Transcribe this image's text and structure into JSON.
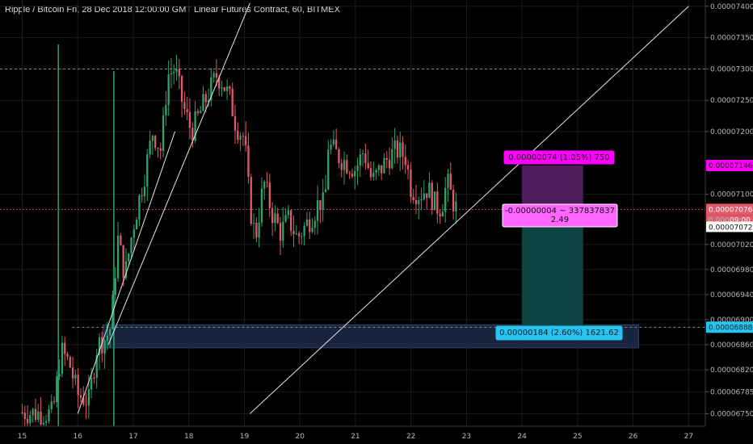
{
  "header": {
    "title": "Ripple / Bitcoin Fri, 28 Dec 2018 12:00:00 GMT Linear Futures Contract, 60, BITMEX"
  },
  "colors": {
    "up": "#2fa36b",
    "down": "#e05a6a",
    "background": "#000000",
    "grid": "#1c1c1c",
    "trendline": "#e6e6e6",
    "profit_zone": "#5a1f66",
    "loss_zone": "#0e4a4a",
    "support_zone": "#1d2b4a",
    "magenta_label": "#ff00ff",
    "cyan_label": "#29c3f0",
    "current_price": "#e05a6a"
  },
  "chart_data": {
    "type": "candlestick",
    "symbol": "Ripple / Bitcoin",
    "interval": "60",
    "exchange": "BITMEX",
    "x_tick_labels": [
      "15",
      "16",
      "17",
      "18",
      "19",
      "20",
      "21",
      "22",
      "23",
      "24",
      "25",
      "26",
      "27"
    ],
    "x_tick_days": [
      15,
      16,
      17,
      18,
      19,
      20,
      21,
      22,
      23,
      24,
      25,
      26,
      27
    ],
    "y_tick_labels": [
      "0.00007400",
      "0.00007350",
      "0.00007300",
      "0.00007250",
      "0.00007200",
      "0.00007100",
      "0.00007020",
      "0.00006980",
      "0.00006940",
      "0.00006900",
      "0.00006860",
      "0.00006820",
      "0.00006785",
      "0.00006750"
    ],
    "y_ticks": [
      7.4e-05,
      7.35e-05,
      7.3e-05,
      7.25e-05,
      7.2e-05,
      7.1e-05,
      7.02e-05,
      6.98e-05,
      6.94e-05,
      6.9e-05,
      6.86e-05,
      6.82e-05,
      6.785e-05,
      6.75e-05
    ],
    "ylim": [
      6.73e-05,
      7.41e-05
    ],
    "xlim": [
      14.6,
      27.3
    ],
    "price_path": [
      [
        15.0,
        6.752e-05
      ],
      [
        15.55,
        6.75e-05
      ],
      [
        15.7,
        6.85e-05
      ],
      [
        15.85,
        6.83e-05
      ],
      [
        16.0,
        6.78e-05
      ],
      [
        16.2,
        6.77e-05
      ],
      [
        16.35,
        6.86e-05
      ],
      [
        16.5,
        6.87e-05
      ],
      [
        16.6,
        6.89e-05
      ],
      [
        16.72,
        7.03e-05
      ],
      [
        16.85,
        6.97e-05
      ],
      [
        17.0,
        7.05e-05
      ],
      [
        17.2,
        7.13e-05
      ],
      [
        17.35,
        7.2e-05
      ],
      [
        17.5,
        7.17e-05
      ],
      [
        17.62,
        7.29e-05
      ],
      [
        17.75,
        7.3e-05
      ],
      [
        17.9,
        7.24e-05
      ],
      [
        18.05,
        7.2e-05
      ],
      [
        18.2,
        7.23e-05
      ],
      [
        18.35,
        7.26e-05
      ],
      [
        18.5,
        7.29e-05
      ],
      [
        18.6,
        7.28e-05
      ],
      [
        18.75,
        7.25e-05
      ],
      [
        18.85,
        7.21e-05
      ],
      [
        19.0,
        7.19e-05
      ],
      [
        19.1,
        7.08e-05
      ],
      [
        19.2,
        7.03e-05
      ],
      [
        19.35,
        7.12e-05
      ],
      [
        19.5,
        7.07e-05
      ],
      [
        19.65,
        7.04e-05
      ],
      [
        19.8,
        7.06e-05
      ],
      [
        19.95,
        7.03e-05
      ],
      [
        20.1,
        7.05e-05
      ],
      [
        20.25,
        7.07e-05
      ],
      [
        20.35,
        7.09e-05
      ],
      [
        20.45,
        7.08e-05
      ],
      [
        20.5,
        7.18e-05
      ],
      [
        20.7,
        7.16e-05
      ],
      [
        20.85,
        7.15e-05
      ],
      [
        21.0,
        7.14e-05
      ],
      [
        21.15,
        7.17e-05
      ],
      [
        21.3,
        7.12e-05
      ],
      [
        21.45,
        7.14e-05
      ],
      [
        21.6,
        7.16e-05
      ],
      [
        21.75,
        7.17e-05
      ],
      [
        21.9,
        7.16e-05
      ],
      [
        22.0,
        7.11e-05
      ],
      [
        22.15,
        7.1e-05
      ],
      [
        22.3,
        7.11e-05
      ],
      [
        22.45,
        7.08e-05
      ],
      [
        22.55,
        7.08e-05
      ],
      [
        22.65,
        7.12e-05
      ],
      [
        22.75,
        7.09e-05
      ],
      [
        22.82,
        7.076e-05
      ]
    ],
    "horizontal_levels": [
      7.3e-05,
      6.888e-05,
      7.076e-05
    ],
    "current_price_label": "0.00007076",
    "current_countdown_label": "09:00",
    "trendlines": [
      {
        "from": [
          16.55,
          6.86e-05
        ],
        "to": [
          19.1,
          7.405e-05
        ]
      },
      {
        "from": [
          16.0,
          6.75e-05
        ],
        "to": [
          17.75,
          7.2e-05
        ]
      },
      {
        "from": [
          19.1,
          6.75e-05
        ],
        "to": [
          27.0,
          7.4e-05
        ]
      }
    ],
    "support_zone": {
      "x0": 16.45,
      "x1": 26.1,
      "y0": 6.855e-05,
      "y1": 6.892e-05
    },
    "position": {
      "x0": 24.0,
      "x1": 25.1,
      "target": 7.146e-05,
      "entry": 7.072e-05,
      "stop": 6.888e-05,
      "target_label": "0.00000074 (1.05%) 750",
      "entry_label_line1": "-0.00000004 ~ 337837837",
      "entry_label_line2": "2.49",
      "stop_label": "0.00000184 (2.60%) 1621.62",
      "axis_target_label": "0.00007146",
      "axis_entry_label": "0.00007072",
      "axis_stop_label": "0.00006888",
      "axis_entry_partial": "0.000"
    }
  }
}
